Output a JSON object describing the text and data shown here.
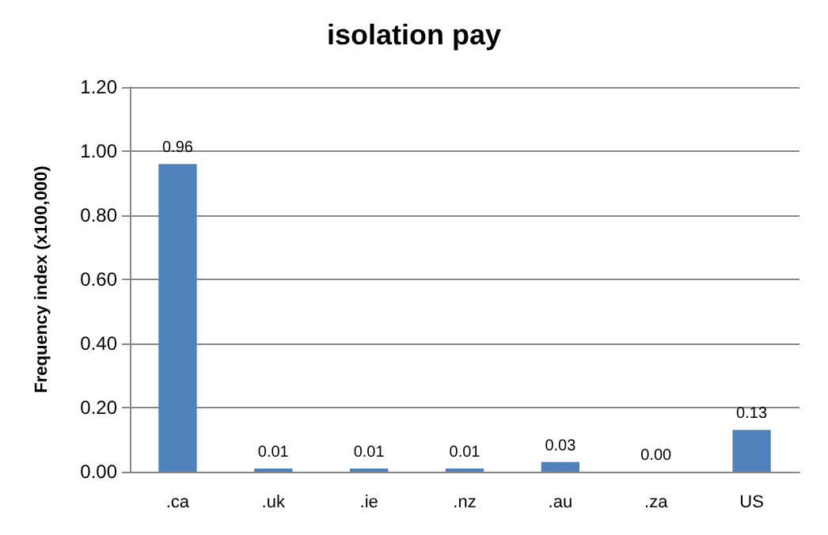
{
  "chart_data": {
    "type": "bar",
    "title": "isolation pay",
    "ylabel": "Frequency index (x100,000)",
    "categories": [
      ".ca",
      ".uk",
      ".ie",
      ".nz",
      ".au",
      ".za",
      "US"
    ],
    "values": [
      0.96,
      0.01,
      0.01,
      0.01,
      0.03,
      0.0,
      0.13
    ],
    "value_labels": [
      "0.96",
      "0.01",
      "0.01",
      "0.01",
      "0.03",
      "0.00",
      "0.13"
    ],
    "color": "#4f81bd",
    "ylim": [
      0,
      1.2
    ],
    "yticks": [
      {
        "value": 0,
        "label": "0.00"
      },
      {
        "value": 0.2,
        "label": "0.20"
      },
      {
        "value": 0.4,
        "label": "0.40"
      },
      {
        "value": 0.6,
        "label": "0.60"
      },
      {
        "value": 0.8,
        "label": "0.80"
      },
      {
        "value": 1.0,
        "label": "1.00"
      },
      {
        "value": 1.2,
        "label": "1.20"
      }
    ],
    "grid": "y"
  }
}
